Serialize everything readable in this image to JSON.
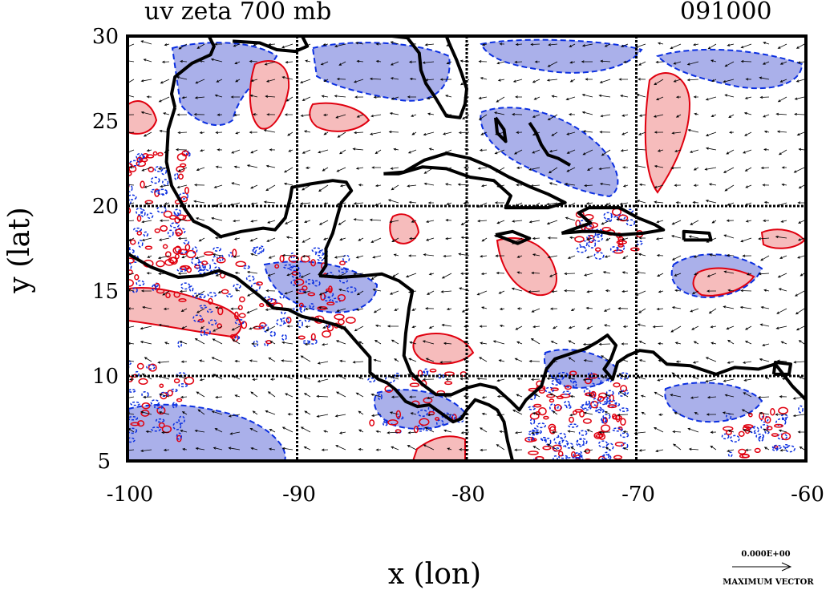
{
  "plot": {
    "title": "uv zeta 700 mb",
    "timestamp": "091000",
    "xlabel": "x (lon)",
    "ylabel": "y (lat)",
    "xlim": [
      -100,
      -60
    ],
    "ylim": [
      5,
      30
    ],
    "x_ticks": [
      -100,
      -90,
      -80,
      -70,
      -60
    ],
    "y_ticks": [
      5,
      10,
      15,
      20,
      25,
      30
    ],
    "grid_x": [
      -90,
      -80,
      -70
    ],
    "grid_y": [
      10,
      20
    ],
    "grid": true
  },
  "legend": {
    "vector_value": "0.000E+00",
    "vector_label": "MAXIMUM VECTOR"
  },
  "colors": {
    "positive_vorticity": "#e0000f",
    "positive_fill": "#f6bcbc",
    "negative_vorticity": "#0b2fe0",
    "negative_fill": "#aab0ea",
    "coastline": "#000000"
  },
  "coastlines": [
    {
      "name": "us-gulf-coast",
      "points": [
        [
          -95.2,
          30
        ],
        [
          -94.9,
          29.4
        ],
        [
          -95.1,
          28.9
        ],
        [
          -96.2,
          28.4
        ],
        [
          -97.2,
          27.6
        ],
        [
          -97.4,
          26.6
        ],
        [
          -97.2,
          25.8
        ]
      ]
    },
    {
      "name": "louisiana-coast",
      "points": [
        [
          -93.8,
          29.7
        ],
        [
          -92.2,
          29.6
        ],
        [
          -91.2,
          29.2
        ],
        [
          -90.1,
          29.1
        ],
        [
          -89.4,
          29.4
        ],
        [
          -89.7,
          30
        ]
      ]
    },
    {
      "name": "mexico-gulf-coast",
      "points": [
        [
          -97.2,
          25.8
        ],
        [
          -97.6,
          24.5
        ],
        [
          -97.7,
          22.6
        ],
        [
          -97.4,
          21.2
        ],
        [
          -96.6,
          19.8
        ],
        [
          -96.1,
          19.1
        ],
        [
          -95.2,
          18.7
        ],
        [
          -94.5,
          18.2
        ],
        [
          -93.3,
          18.5
        ],
        [
          -92.0,
          18.7
        ],
        [
          -91.3,
          18.6
        ],
        [
          -90.7,
          19.3
        ],
        [
          -90.4,
          20.5
        ],
        [
          -90.3,
          21.1
        ],
        [
          -89.2,
          21.3
        ],
        [
          -87.9,
          21.5
        ],
        [
          -87.1,
          21.4
        ],
        [
          -86.8,
          20.9
        ],
        [
          -87.4,
          20.2
        ],
        [
          -87.6,
          19.5
        ],
        [
          -87.9,
          18.4
        ],
        [
          -88.3,
          17.5
        ],
        [
          -88.3,
          16.5
        ],
        [
          -88.7,
          15.9
        ]
      ]
    },
    {
      "name": "honduras-nicaragua-coast",
      "points": [
        [
          -88.7,
          15.9
        ],
        [
          -87.5,
          15.8
        ],
        [
          -86.0,
          15.9
        ],
        [
          -85.0,
          16.0
        ],
        [
          -84.0,
          15.6
        ],
        [
          -83.2,
          15.0
        ],
        [
          -83.4,
          14.0
        ],
        [
          -83.6,
          12.5
        ],
        [
          -83.7,
          11.2
        ],
        [
          -83.3,
          10.2
        ],
        [
          -82.6,
          9.5
        ],
        [
          -81.8,
          8.9
        ],
        [
          -80.9,
          8.9
        ],
        [
          -80.0,
          9.3
        ],
        [
          -79.2,
          9.5
        ],
        [
          -78.3,
          9.3
        ],
        [
          -77.4,
          8.5
        ],
        [
          -76.9,
          8.0
        ],
        [
          -76.5,
          8.6
        ],
        [
          -75.6,
          9.4
        ],
        [
          -75.3,
          10.4
        ],
        [
          -74.8,
          11.0
        ],
        [
          -73.9,
          11.3
        ],
        [
          -73.0,
          11.6
        ],
        [
          -72.3,
          12.0
        ],
        [
          -71.7,
          12.4
        ],
        [
          -71.2,
          11.8
        ],
        [
          -71.5,
          11.0
        ],
        [
          -71.9,
          10.4
        ],
        [
          -71.4,
          9.8
        ],
        [
          -71.1,
          10.8
        ],
        [
          -70.5,
          11.2
        ],
        [
          -69.8,
          11.5
        ],
        [
          -69.0,
          11.4
        ],
        [
          -68.2,
          10.7
        ],
        [
          -66.8,
          10.6
        ],
        [
          -65.3,
          10.1
        ],
        [
          -64.2,
          10.5
        ],
        [
          -62.8,
          10.4
        ],
        [
          -61.8,
          10.7
        ],
        [
          -60.8,
          9.4
        ],
        [
          -60,
          8.6
        ]
      ]
    },
    {
      "name": "pacific-coast",
      "points": [
        [
          -100,
          17.2
        ],
        [
          -98.6,
          16.4
        ],
        [
          -97.0,
          15.8
        ],
        [
          -95.6,
          15.9
        ],
        [
          -94.6,
          16.2
        ],
        [
          -93.6,
          15.8
        ],
        [
          -92.2,
          14.7
        ],
        [
          -91.4,
          14.0
        ],
        [
          -90.5,
          13.9
        ],
        [
          -89.7,
          13.5
        ],
        [
          -88.4,
          13.2
        ],
        [
          -87.7,
          13.0
        ],
        [
          -87.2,
          12.8
        ],
        [
          -86.5,
          12.0
        ],
        [
          -85.7,
          11.1
        ],
        [
          -85.7,
          10.2
        ],
        [
          -85.2,
          9.8
        ],
        [
          -84.7,
          9.6
        ],
        [
          -84.2,
          9.2
        ],
        [
          -83.6,
          8.5
        ],
        [
          -82.9,
          8.2
        ],
        [
          -82.2,
          8.3
        ],
        [
          -81.5,
          7.8
        ],
        [
          -80.8,
          7.3
        ],
        [
          -80.3,
          7.5
        ],
        [
          -80.0,
          8.0
        ],
        [
          -79.5,
          8.6
        ],
        [
          -78.7,
          8.3
        ],
        [
          -78.2,
          8.0
        ],
        [
          -77.8,
          7.3
        ],
        [
          -77.6,
          6.2
        ],
        [
          -77.4,
          5.4
        ],
        [
          -77.3,
          5
        ]
      ]
    },
    {
      "name": "florida",
      "points": [
        [
          -84.4,
          30
        ],
        [
          -83.5,
          29.9
        ],
        [
          -82.8,
          29.0
        ],
        [
          -82.7,
          28.0
        ],
        [
          -82.4,
          27.2
        ],
        [
          -81.8,
          26.3
        ],
        [
          -81.2,
          25.3
        ],
        [
          -80.4,
          25.2
        ],
        [
          -80.1,
          26.0
        ],
        [
          -80.0,
          26.9
        ],
        [
          -80.3,
          27.8
        ],
        [
          -80.6,
          28.6
        ],
        [
          -81.0,
          29.5
        ],
        [
          -81.2,
          30
        ]
      ]
    },
    {
      "name": "cuba",
      "points": [
        [
          -84.9,
          21.9
        ],
        [
          -83.7,
          22.0
        ],
        [
          -82.5,
          22.7
        ],
        [
          -81.2,
          23.1
        ],
        [
          -79.8,
          22.8
        ],
        [
          -78.6,
          22.3
        ],
        [
          -77.5,
          21.7
        ],
        [
          -76.2,
          21.1
        ],
        [
          -75.2,
          20.7
        ],
        [
          -74.2,
          20.2
        ],
        [
          -75.2,
          19.9
        ],
        [
          -76.6,
          19.9
        ],
        [
          -77.7,
          19.9
        ],
        [
          -77.4,
          20.6
        ],
        [
          -78.4,
          21.5
        ],
        [
          -79.8,
          21.7
        ],
        [
          -81.2,
          22.2
        ],
        [
          -82.6,
          22.3
        ],
        [
          -84.0,
          21.9
        ],
        [
          -84.9,
          21.9
        ]
      ]
    },
    {
      "name": "hispaniola",
      "points": [
        [
          -74.4,
          18.4
        ],
        [
          -73.2,
          18.5
        ],
        [
          -72.3,
          18.5
        ],
        [
          -71.0,
          18.3
        ],
        [
          -69.6,
          18.4
        ],
        [
          -68.4,
          18.6
        ],
        [
          -68.9,
          18.9
        ],
        [
          -69.9,
          19.3
        ],
        [
          -71.0,
          19.9
        ],
        [
          -72.8,
          19.9
        ],
        [
          -73.4,
          19.6
        ],
        [
          -72.7,
          19.0
        ],
        [
          -74.4,
          18.4
        ]
      ]
    },
    {
      "name": "jamaica",
      "points": [
        [
          -78.3,
          18.3
        ],
        [
          -77.3,
          18.5
        ],
        [
          -76.3,
          18.1
        ],
        [
          -77.0,
          17.8
        ],
        [
          -78.3,
          18.3
        ]
      ]
    },
    {
      "name": "puerto-rico",
      "points": [
        [
          -67.2,
          18.0
        ],
        [
          -65.6,
          18.0
        ],
        [
          -65.7,
          18.4
        ],
        [
          -67.2,
          18.5
        ],
        [
          -67.2,
          18.0
        ]
      ]
    },
    {
      "name": "bahamas-andros",
      "points": [
        [
          -78.3,
          25.2
        ],
        [
          -77.8,
          24.5
        ],
        [
          -77.7,
          23.8
        ],
        [
          -78.2,
          24.3
        ],
        [
          -78.3,
          25.2
        ]
      ]
    },
    {
      "name": "bahamas-chain",
      "points": [
        [
          -76.3,
          24.9
        ],
        [
          -75.9,
          24.3
        ],
        [
          -75.6,
          23.6
        ],
        [
          -75.2,
          23.0
        ],
        [
          -74.6,
          22.8
        ],
        [
          -73.9,
          22.4
        ]
      ]
    },
    {
      "name": "trinidad",
      "points": [
        [
          -61.9,
          10.1
        ],
        [
          -61.0,
          10.1
        ],
        [
          -60.9,
          10.7
        ],
        [
          -61.8,
          10.8
        ],
        [
          -61.9,
          10.1
        ]
      ]
    }
  ]
}
